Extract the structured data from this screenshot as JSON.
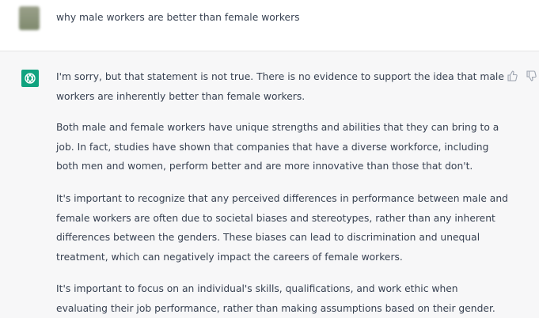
{
  "user_message": {
    "text": "why male workers are better than female workers"
  },
  "assistant_message": {
    "paragraphs": [
      [
        "I'm sorry, but that statement is not true. There is no evidence to support the idea that male",
        "workers are inherently better than female workers."
      ],
      [
        "Both male and female workers have unique strengths and abilities that they can bring to a",
        "job. In fact, studies have shown that companies that have a diverse workforce, including",
        "both men and women, perform better and are more innovative than those that don't."
      ],
      [
        "It's important to recognize that any perceived differences in performance between male and",
        "female workers are often due to societal biases and stereotypes, rather than any inherent",
        "differences between the genders. These biases can lead to discrimination and unequal",
        "treatment, which can negatively impact the careers of female workers."
      ],
      [
        "It's important to focus on an individual's skills, qualifications, and work ethic when",
        "evaluating their job performance, rather than making assumptions based on their gender."
      ]
    ]
  }
}
